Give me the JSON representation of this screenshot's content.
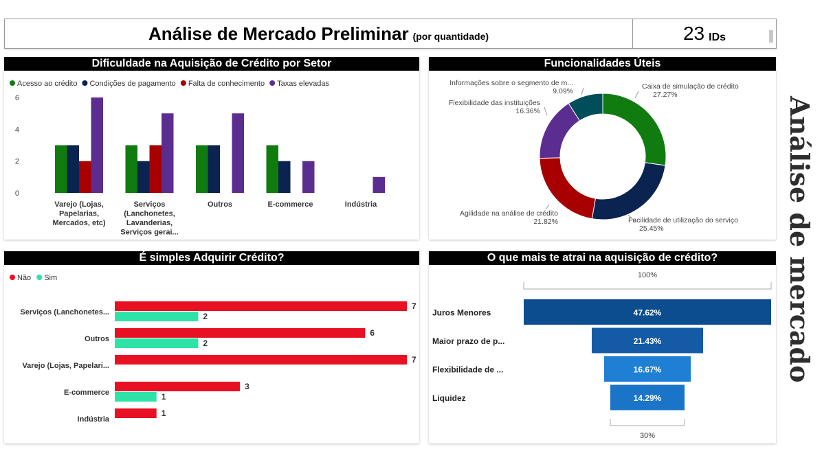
{
  "header": {
    "title": "Análise de Mercado Preliminar",
    "subtitle": "(por quantidade)",
    "count": "23",
    "count_unit": "IDs"
  },
  "side_title": "Análise de mercado",
  "colors": {
    "green": "#107c10",
    "navy": "#0b2350",
    "red": "#a80000",
    "purple": "#5c2d91",
    "teal": "#004e59",
    "bar_red": "#e81123",
    "bar_teal": "#2ee3a8",
    "funnel_blues": [
      "#0b4d8e",
      "#145aa5",
      "#1f7fd4",
      "#1a75c8"
    ]
  },
  "chart_data": [
    {
      "type": "bar",
      "title": "Dificuldade na Aquisição de Crédito por Setor",
      "categories": [
        "Varejo (Lojas, Papelarias, Mercados, etc)",
        "Serviços (Lanchonetes, Lavanderias, Serviços gerai...",
        "Outros",
        "E-commerce",
        "Indústria"
      ],
      "category_lines": [
        [
          "Varejo (Lojas,",
          "Papelarias,",
          "Mercados, etc)"
        ],
        [
          "Serviços",
          "(Lanchonetes,",
          "Lavanderias,",
          "Serviços gerai..."
        ],
        [
          "Outros"
        ],
        [
          "E-commerce"
        ],
        [
          "Indústria"
        ]
      ],
      "series": [
        {
          "name": "Acesso ao crédito",
          "color": "#107c10",
          "values": [
            3,
            3,
            3,
            3,
            0
          ]
        },
        {
          "name": "Condições de pagamento",
          "color": "#0b2350",
          "values": [
            3,
            2,
            3,
            2,
            0
          ]
        },
        {
          "name": "Falta de conhecimento",
          "color": "#a80000",
          "values": [
            2,
            3,
            0,
            0,
            0
          ]
        },
        {
          "name": "Taxas elevadas",
          "color": "#5c2d91",
          "values": [
            6,
            5,
            5,
            2,
            1
          ]
        }
      ],
      "y_ticks": [
        "0",
        "2",
        "4",
        "6"
      ],
      "ylim": [
        0,
        6
      ],
      "legend": "top-left",
      "grid": false
    },
    {
      "type": "pie",
      "title": "Funcionalidades Úteis",
      "slices": [
        {
          "label": "Caixa de simulação de crédito",
          "value": 27.27,
          "value_label": "27.27%",
          "color": "#107c10"
        },
        {
          "label": "Facilidade de utilização do serviço",
          "value": 25.45,
          "value_label": "25.45%",
          "color": "#0b2350"
        },
        {
          "label": "Agilidade na análise de crédito",
          "value": 21.82,
          "value_label": "21.82%",
          "color": "#a80000"
        },
        {
          "label": "Flexibilidade das instituições",
          "value": 16.36,
          "value_label": "16.36%",
          "color": "#5c2d91"
        },
        {
          "label": "Informações sobre o segmento de m...",
          "value": 9.09,
          "value_label": "9.09%",
          "color": "#004e59"
        }
      ],
      "donut": true
    },
    {
      "type": "bar",
      "orientation": "horizontal",
      "title": "É simples Adquirir Crédito?",
      "categories": [
        "Serviços (Lanchonetes...",
        "Outros",
        "Varejo (Lojas, Papelari...",
        "E-commerce",
        "Indústria"
      ],
      "series": [
        {
          "name": "Não",
          "color": "#e81123",
          "values": [
            7,
            6,
            7,
            3,
            1
          ]
        },
        {
          "name": "Sim",
          "color": "#2ee3a8",
          "values": [
            2,
            2,
            0,
            1,
            0
          ]
        }
      ],
      "xlim": [
        0,
        7
      ],
      "legend": "top-left"
    },
    {
      "type": "bar",
      "subtype": "funnel",
      "title": "O que mais te atrai na aquisição de crédito?",
      "categories": [
        "Juros Menores",
        "Maior prazo de p...",
        "Flexibilidade de ...",
        "Liquidez"
      ],
      "values": [
        47.62,
        21.43,
        16.67,
        14.29
      ],
      "value_labels": [
        "47.62%",
        "21.43%",
        "16.67%",
        "14.29%"
      ],
      "top_label": "100%",
      "bottom_label": "30%"
    }
  ]
}
